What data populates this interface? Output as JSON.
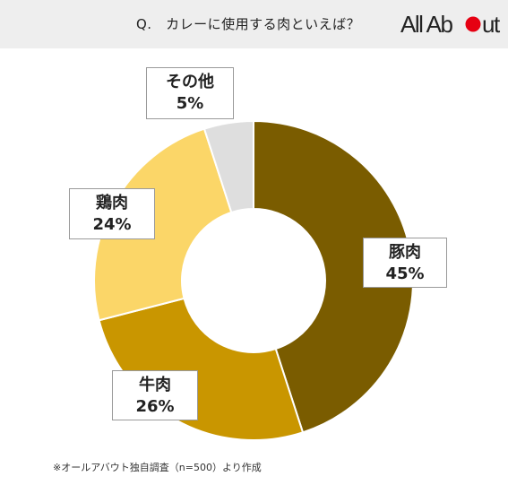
{
  "header": {
    "question": "Q.　カレーに使用する肉といえば？",
    "logo": "AllAbout",
    "logo_color": "#e60012"
  },
  "chart_data": {
    "type": "pie",
    "variant": "donut",
    "title": "",
    "categories": [
      "豚肉",
      "牛肉",
      "鶏肉",
      "その他"
    ],
    "values": [
      45,
      26,
      24,
      5
    ],
    "value_labels": [
      "45%",
      "26%",
      "24%",
      "5%"
    ],
    "colors": [
      "#7a5c00",
      "#c99600",
      "#fbd668",
      "#dedede"
    ],
    "start": "12 o'clock",
    "direction": "clockwise"
  },
  "footnote": "※オールアバウト独自調査（n=500）より作成"
}
